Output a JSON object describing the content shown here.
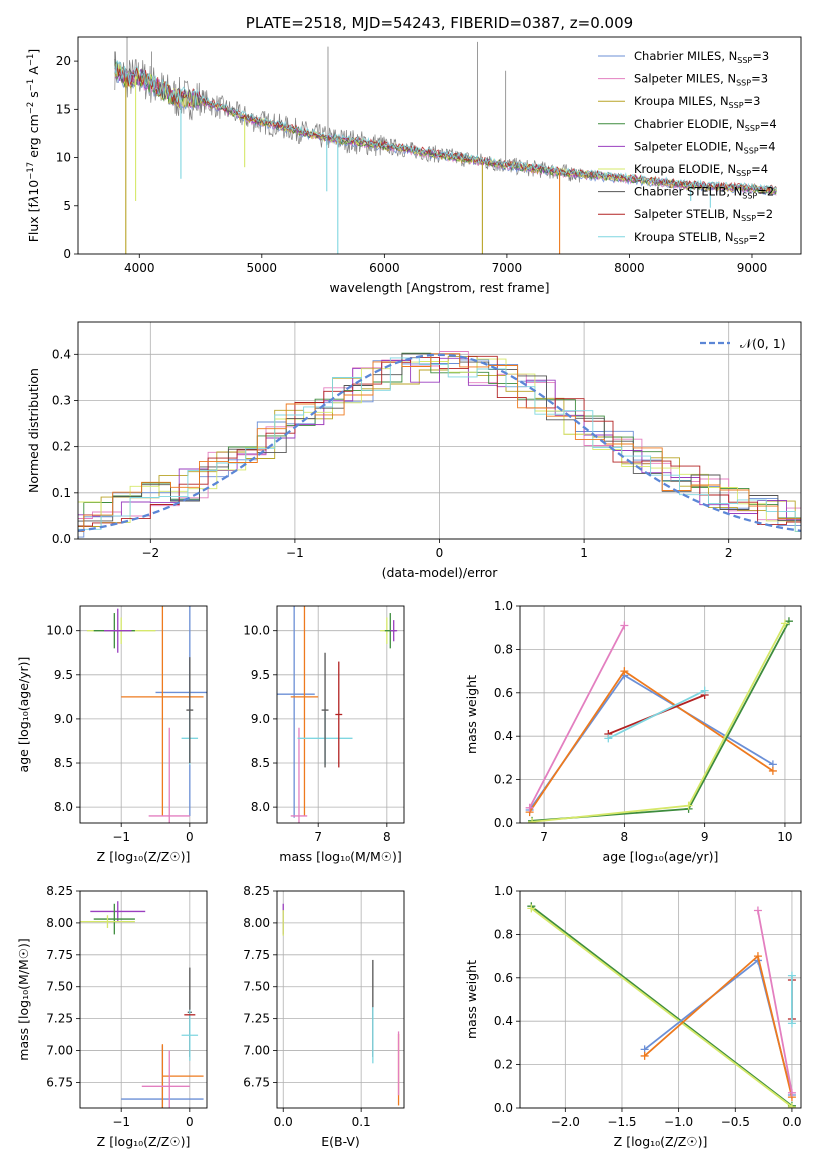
{
  "colors": {
    "chab_miles": "#6b8fd6",
    "salp_miles": "#e37fc0",
    "krou_miles": "#b8a326",
    "chab_elodie": "#3d8c3d",
    "salp_elodie": "#9a3fbf",
    "krou_elodie": "#d6e86a",
    "chab_stelib": "#555555",
    "salp_stelib": "#b22222",
    "krou_stelib": "#7fd6e0",
    "orange": "#ee7a1e",
    "gauss": "#5b86d6",
    "data_gray": "#808080"
  },
  "chart_data": [
    {
      "id": "spectrum",
      "type": "line",
      "title": "PLATE=2518, MJD=54243, FIBERID=0387, z=0.009",
      "xlabel": "wavelength [Angstrom, rest frame]",
      "ylabel_parts": [
        "Flux [f",
        "λ",
        "10",
        "−17",
        " erg cm",
        "−2",
        " s",
        "−1",
        " A",
        "−1",
        "]"
      ],
      "xlim": [
        3500,
        9400
      ],
      "ylim": [
        0,
        22.5
      ],
      "xticks": [
        4000,
        5000,
        6000,
        7000,
        8000,
        9000
      ],
      "yticks": [
        0,
        5,
        10,
        15,
        20
      ],
      "legend": [
        {
          "label": "Chabrier MILES, N",
          "sub": "SSP",
          "n": "=3",
          "color": "chab_miles"
        },
        {
          "label": "Salpeter MILES, N",
          "sub": "SSP",
          "n": "=3",
          "color": "salp_miles"
        },
        {
          "label": "Kroupa MILES, N",
          "sub": "SSP",
          "n": "=3",
          "color": "krou_miles"
        },
        {
          "label": "Chabrier ELODIE, N",
          "sub": "SSP",
          "n": "=4",
          "color": "chab_elodie"
        },
        {
          "label": "Salpeter ELODIE, N",
          "sub": "SSP",
          "n": "=4",
          "color": "salp_elodie"
        },
        {
          "label": "Kroupa ELODIE, N",
          "sub": "SSP",
          "n": "=4",
          "color": "krou_elodie"
        },
        {
          "label": "Chabrier STELIB, N",
          "sub": "SSP",
          "n": "=2",
          "color": "chab_stelib"
        },
        {
          "label": "Salpeter STELIB, N",
          "sub": "SSP",
          "n": "=2",
          "color": "salp_stelib"
        },
        {
          "label": "Kroupa STELIB, N",
          "sub": "SSP",
          "n": "=2",
          "color": "krou_stelib"
        }
      ],
      "continuum": [
        [
          3800,
          19.2
        ],
        [
          3900,
          18.2
        ],
        [
          4000,
          18.4
        ],
        [
          4100,
          17.6
        ],
        [
          4300,
          16.2
        ],
        [
          4500,
          16.0
        ],
        [
          4700,
          15.0
        ],
        [
          4900,
          14.0
        ],
        [
          5100,
          13.4
        ],
        [
          5500,
          12.1
        ],
        [
          6000,
          11.2
        ],
        [
          6500,
          10.2
        ],
        [
          7000,
          9.2
        ],
        [
          7500,
          8.4
        ],
        [
          8000,
          7.8
        ],
        [
          8500,
          7.1
        ],
        [
          9000,
          6.8
        ],
        [
          9200,
          6.6
        ]
      ],
      "dips": [
        {
          "x": 3890,
          "y": 0,
          "color": "krou_miles"
        },
        {
          "x": 3970,
          "y": 5.5,
          "color": "krou_elodie"
        },
        {
          "x": 4340,
          "y": 7.8,
          "color": "krou_stelib"
        },
        {
          "x": 4860,
          "y": 9.0,
          "color": "krou_elodie"
        },
        {
          "x": 5530,
          "y": 6.5,
          "color": "krou_stelib"
        },
        {
          "x": 5620,
          "y": 0,
          "color": "krou_stelib"
        },
        {
          "x": 6800,
          "y": 0,
          "color": "krou_miles"
        },
        {
          "x": 7430,
          "y": 0,
          "color": "orange"
        },
        {
          "x": 8500,
          "y": 5.5,
          "color": "krou_stelib"
        },
        {
          "x": 8660,
          "y": 4.8,
          "color": "krou_stelib"
        }
      ],
      "spikes": [
        [
          3800,
          21.0
        ],
        [
          3900,
          22.5
        ],
        [
          4100,
          21.0
        ],
        [
          5540,
          21.5
        ],
        [
          6760,
          22.0
        ],
        [
          6990,
          19.0
        ]
      ]
    },
    {
      "id": "residuals",
      "type": "line",
      "xlabel": "(data-model)/error",
      "ylabel": "Normed distribution",
      "xlim": [
        -2.5,
        2.5
      ],
      "ylim": [
        0,
        0.47
      ],
      "xticks": [
        -2,
        -1,
        0,
        1,
        2
      ],
      "yticks": [
        0,
        0.1,
        0.2,
        0.3,
        0.4
      ],
      "legend": [
        {
          "label": "𝒩(0, 1)",
          "color": "gauss"
        }
      ],
      "gauss": {
        "mean": 0,
        "sigma": 1
      }
    },
    {
      "id": "age_vs_Z_err",
      "type": "scatter",
      "xlabel": "Z [log₁₀(Z/Z☉)]",
      "ylabel": "age  [log₁₀(age/yr)]",
      "xlim": [
        -1.6,
        0.25
      ],
      "ylim": [
        7.82,
        10.28
      ],
      "xticks": [
        -1,
        0
      ],
      "yticks": [
        8.0,
        8.5,
        9.0,
        9.5,
        10.0
      ],
      "points": [
        {
          "x": -1.0,
          "y": 10.0,
          "xerr": 0.5,
          "yerr": 0.15,
          "color": "krou_elodie"
        },
        {
          "x": -1.1,
          "y": 10.0,
          "xerr": 0.3,
          "yerr": 0.2,
          "color": "chab_elodie"
        },
        {
          "x": -1.05,
          "y": 10.0,
          "xerr": 0.2,
          "yerr": 0.25,
          "color": "salp_elodie"
        },
        {
          "x": 0.0,
          "y": 9.3,
          "xerr": 0.5,
          "yerr": 1.4,
          "color": "chab_miles"
        },
        {
          "x": -0.4,
          "y": 9.25,
          "xerr": 0.6,
          "yerr": 1.35,
          "color": "orange"
        },
        {
          "x": -0.3,
          "y": 7.9,
          "xerr": 0.3,
          "yerr": 1.0,
          "color": "salp_miles"
        },
        {
          "x": 0.0,
          "y": 8.78,
          "xerr": 0.12,
          "yerr": 0.3,
          "color": "krou_stelib"
        },
        {
          "x": 0.0,
          "y": 9.1,
          "xerr": 0.05,
          "yerr": 0.6,
          "color": "chab_stelib"
        }
      ]
    },
    {
      "id": "age_vs_mass_err",
      "type": "scatter",
      "xlabel": "mass [log₁₀(M/M☉)]",
      "ylabel": "",
      "xlim": [
        6.4,
        8.25
      ],
      "ylim": [
        7.82,
        10.28
      ],
      "xticks": [
        7,
        8
      ],
      "yticks": [
        8.0,
        8.5,
        9.0,
        9.5,
        10.0
      ],
      "points": [
        {
          "x": 6.65,
          "y": 9.28,
          "xerr": 0.3,
          "yerr": 1.4,
          "color": "chab_miles"
        },
        {
          "x": 6.8,
          "y": 9.25,
          "xerr": 0.2,
          "yerr": 1.35,
          "color": "orange"
        },
        {
          "x": 6.72,
          "y": 7.9,
          "xerr": 0.12,
          "yerr": 1.0,
          "color": "salp_miles"
        },
        {
          "x": 7.1,
          "y": 8.78,
          "xerr": 0.4,
          "yerr": 0.3,
          "color": "krou_stelib"
        },
        {
          "x": 7.1,
          "y": 9.1,
          "xerr": 0.05,
          "yerr": 0.65,
          "color": "chab_stelib"
        },
        {
          "x": 7.3,
          "y": 9.05,
          "xerr": 0.05,
          "yerr": 0.6,
          "color": "salp_stelib"
        },
        {
          "x": 8.0,
          "y": 10.0,
          "xerr": 0.1,
          "yerr": 0.15,
          "color": "krou_elodie"
        },
        {
          "x": 8.05,
          "y": 10.0,
          "xerr": 0.08,
          "yerr": 0.2,
          "color": "chab_elodie"
        },
        {
          "x": 8.1,
          "y": 10.0,
          "xerr": 0.05,
          "yerr": 0.12,
          "color": "salp_elodie"
        }
      ]
    },
    {
      "id": "weight_vs_age",
      "type": "line",
      "xlabel": "age  [log₁₀(age/yr)]",
      "ylabel": "mass weight",
      "xlim": [
        6.7,
        10.2
      ],
      "ylim": [
        0,
        1.0
      ],
      "xticks": [
        7,
        8,
        9,
        10
      ],
      "yticks": [
        0.0,
        0.2,
        0.4,
        0.6,
        0.8,
        1.0
      ],
      "series": [
        {
          "color": "chab_miles",
          "x": [
            6.82,
            8.0,
            9.85
          ],
          "y": [
            0.06,
            0.68,
            0.27
          ]
        },
        {
          "color": "orange",
          "x": [
            6.82,
            8.0,
            9.85
          ],
          "y": [
            0.05,
            0.7,
            0.24
          ]
        },
        {
          "color": "salp_miles",
          "x": [
            6.82,
            8.0
          ],
          "y": [
            0.07,
            0.91
          ]
        },
        {
          "color": "chab_elodie",
          "x": [
            6.85,
            8.8,
            10.05
          ],
          "y": [
            0.01,
            0.065,
            0.93
          ]
        },
        {
          "color": "krou_elodie",
          "x": [
            6.85,
            8.8,
            10.0
          ],
          "y": [
            0.005,
            0.08,
            0.92
          ]
        },
        {
          "color": "salp_stelib",
          "x": [
            7.8,
            9.0
          ],
          "y": [
            0.41,
            0.59
          ]
        },
        {
          "color": "krou_stelib",
          "x": [
            7.8,
            9.0
          ],
          "y": [
            0.39,
            0.61
          ]
        }
      ]
    },
    {
      "id": "mass_vs_Z_err",
      "type": "scatter",
      "xlabel": "Z [log₁₀(Z/Z☉)]",
      "ylabel": "mass [log₁₀(M/M☉)]",
      "xlim": [
        -1.6,
        0.25
      ],
      "ylim": [
        6.55,
        8.25
      ],
      "xticks": [
        -1,
        0
      ],
      "yticks": [
        6.75,
        7.0,
        7.25,
        7.5,
        7.75,
        8.0,
        8.25
      ],
      "points": [
        {
          "x": -1.05,
          "y": 8.09,
          "xerr": 0.4,
          "yerr": 0.08,
          "color": "salp_elodie"
        },
        {
          "x": -1.1,
          "y": 8.03,
          "xerr": 0.3,
          "yerr": 0.12,
          "color": "chab_elodie"
        },
        {
          "x": -1.2,
          "y": 8.01,
          "xerr": 0.4,
          "yerr": 0.05,
          "color": "krou_elodie"
        },
        {
          "x": -0.4,
          "y": 6.62,
          "xerr": 0.6,
          "yerr": 0.42,
          "color": "chab_miles"
        },
        {
          "x": -0.4,
          "y": 6.8,
          "xerr": 0.0,
          "yerr": 0.25,
          "color": "orange"
        },
        {
          "x": -0.1,
          "y": 6.8,
          "xerr": 0.3,
          "yerr": 0.0,
          "color": "orange"
        },
        {
          "x": -0.35,
          "y": 6.72,
          "xerr": 0.35,
          "yerr": 0.0,
          "color": "salp_miles"
        },
        {
          "x": -0.3,
          "y": 6.72,
          "xerr": 0.0,
          "yerr": 0.28,
          "color": "salp_miles"
        },
        {
          "x": 0.0,
          "y": 7.3,
          "xerr": 0.03,
          "yerr": 0.35,
          "color": "chab_stelib"
        },
        {
          "x": 0.0,
          "y": 7.12,
          "xerr": 0.12,
          "yerr": 0.2,
          "color": "krou_stelib"
        },
        {
          "x": 0.0,
          "y": 7.28,
          "xerr": 0.08,
          "yerr": 0.0,
          "color": "salp_stelib"
        }
      ]
    },
    {
      "id": "mass_vs_EBV",
      "type": "scatter",
      "xlabel": "E(B-V)",
      "ylabel": "",
      "xlim": [
        -0.008,
        0.155
      ],
      "ylim": [
        6.55,
        8.25
      ],
      "xticks": [
        0.0,
        0.1
      ],
      "yticks": [
        6.75,
        7.0,
        7.25,
        7.5,
        7.75,
        8.0,
        8.25
      ],
      "points": [
        {
          "x": 0.0,
          "y": 8.03,
          "xerr": 0,
          "yerr": 0.12,
          "color": "salp_elodie"
        },
        {
          "x": 0.0,
          "y": 8.0,
          "xerr": 0,
          "yerr": 0.1,
          "color": "krou_elodie"
        },
        {
          "x": 0.115,
          "y": 7.33,
          "xerr": 0,
          "yerr": 0.38,
          "color": "chab_stelib"
        },
        {
          "x": 0.115,
          "y": 7.12,
          "xerr": 0,
          "yerr": 0.22,
          "color": "krou_stelib"
        },
        {
          "x": 0.148,
          "y": 6.85,
          "xerr": 0,
          "yerr": 0.28,
          "color": "orange"
        },
        {
          "x": 0.148,
          "y": 6.9,
          "xerr": 0,
          "yerr": 0.25,
          "color": "salp_miles"
        }
      ]
    },
    {
      "id": "weight_vs_Z",
      "type": "line",
      "xlabel": "Z [log₁₀(Z/Z☉)]",
      "ylabel": "mass weight",
      "xlim": [
        -2.4,
        0.08
      ],
      "ylim": [
        0,
        1.0
      ],
      "xticks": [
        -2.0,
        -1.5,
        -1.0,
        -0.5,
        0.0
      ],
      "yticks": [
        0.0,
        0.2,
        0.4,
        0.6,
        0.8,
        1.0
      ],
      "series": [
        {
          "color": "chab_elodie",
          "x": [
            -2.3,
            0.0
          ],
          "y": [
            0.93,
            0.01
          ]
        },
        {
          "color": "krou_elodie",
          "x": [
            -2.3,
            0.0
          ],
          "y": [
            0.92,
            0.005
          ]
        },
        {
          "color": "chab_miles",
          "x": [
            -1.3,
            -0.3,
            0.0
          ],
          "y": [
            0.27,
            0.68,
            0.06
          ]
        },
        {
          "color": "orange",
          "x": [
            -1.3,
            -0.3,
            0.0
          ],
          "y": [
            0.24,
            0.7,
            0.05
          ]
        },
        {
          "color": "salp_miles",
          "x": [
            -0.3,
            0.0
          ],
          "y": [
            0.91,
            0.07
          ]
        },
        {
          "color": "salp_stelib",
          "x": [
            0.0,
            0.0
          ],
          "y": [
            0.41,
            0.59
          ]
        },
        {
          "color": "krou_stelib",
          "x": [
            0.0,
            0.0
          ],
          "y": [
            0.39,
            0.61
          ]
        }
      ]
    }
  ]
}
